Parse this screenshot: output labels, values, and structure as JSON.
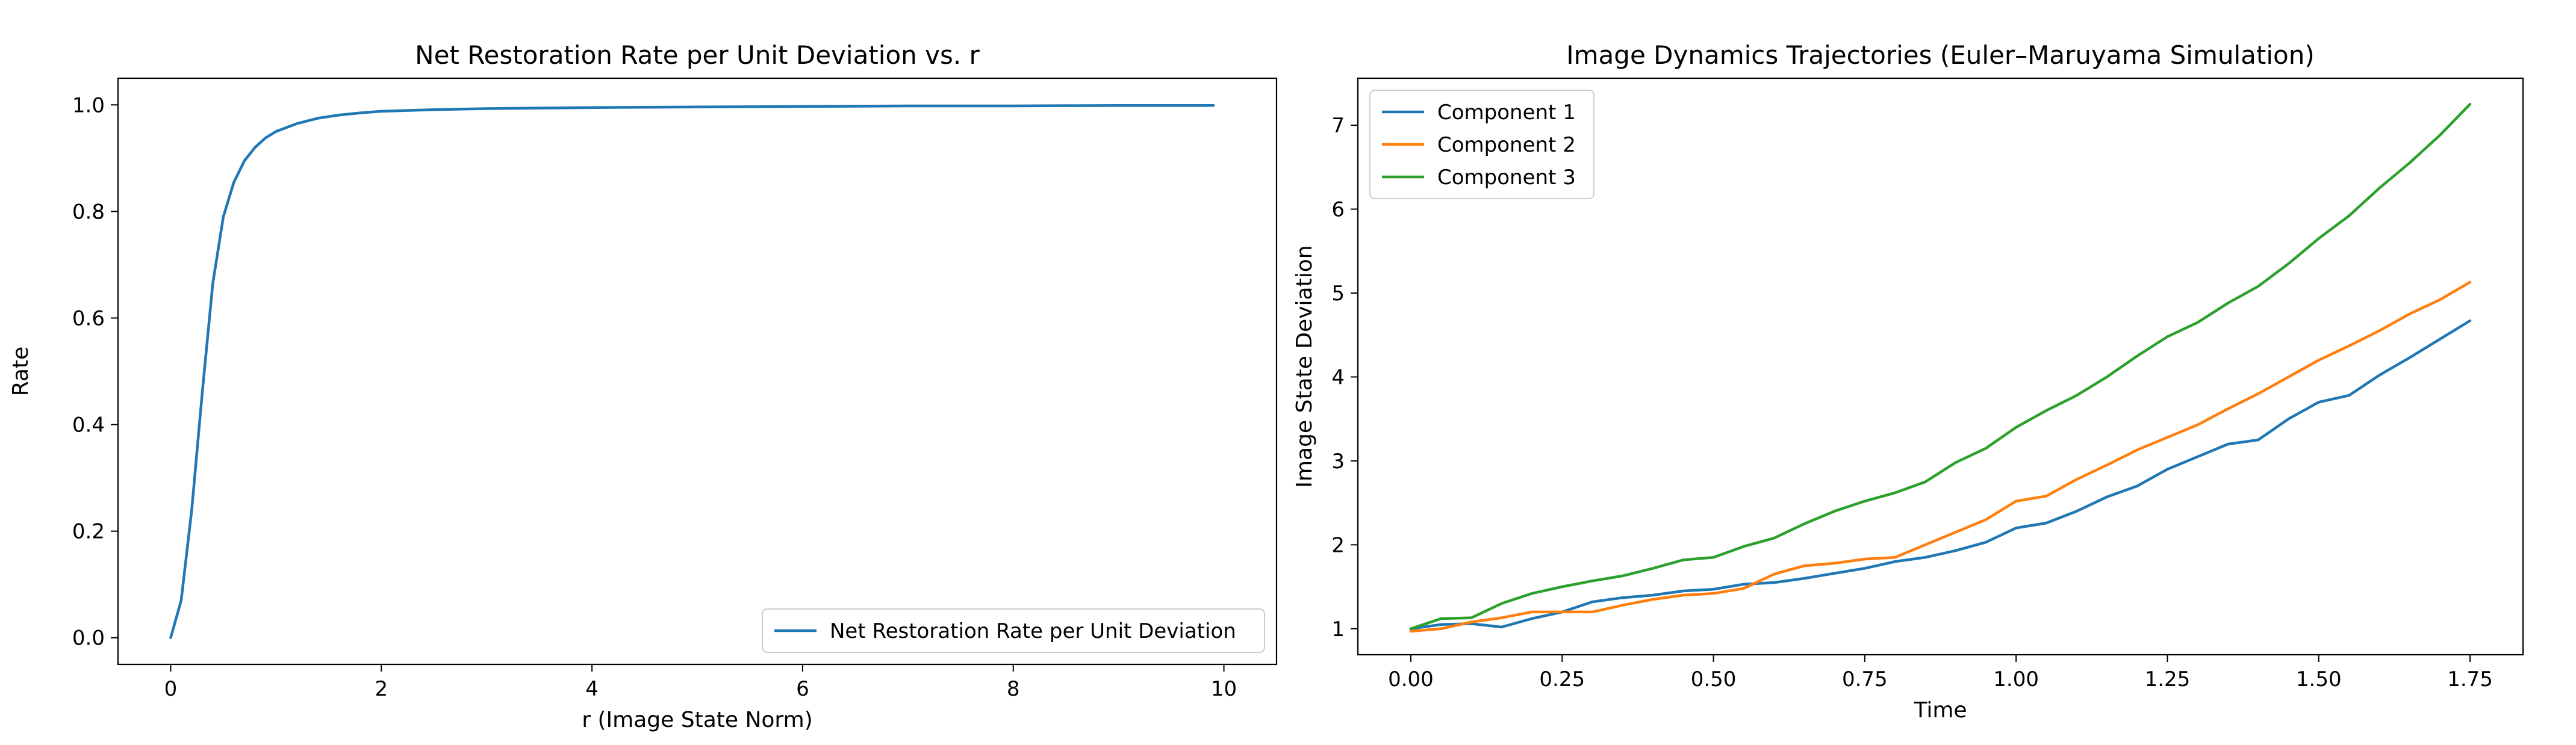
{
  "chart_data": [
    {
      "type": "line",
      "title": "Net Restoration Rate per Unit Deviation vs. r",
      "xlabel": "r (Image State Norm)",
      "ylabel": "Rate",
      "xlim": [
        -0.5,
        10.5
      ],
      "ylim": [
        -0.05,
        1.05
      ],
      "xticks": [
        0,
        2,
        4,
        6,
        8,
        10
      ],
      "yticks": [
        0.0,
        0.2,
        0.4,
        0.6,
        0.8,
        1.0
      ],
      "xtick_labels": [
        "0",
        "2",
        "4",
        "6",
        "8",
        "10"
      ],
      "ytick_labels": [
        "0.0",
        "0.2",
        "0.4",
        "0.6",
        "0.8",
        "1.0"
      ],
      "grid": false,
      "legend_position": "lower-right",
      "series": [
        {
          "name": "Net Restoration Rate per Unit Deviation",
          "color": "#1f77b4",
          "x": [
            0,
            0.1,
            0.2,
            0.3,
            0.4,
            0.5,
            0.6,
            0.7,
            0.8,
            0.9,
            1.0,
            1.2,
            1.4,
            1.6,
            1.8,
            2.0,
            2.5,
            3.0,
            3.5,
            4.0,
            5.0,
            6.0,
            7.0,
            8.0,
            9.0,
            9.9
          ],
          "y": [
            0.0,
            0.07,
            0.24,
            0.46,
            0.665,
            0.79,
            0.855,
            0.895,
            0.92,
            0.938,
            0.95,
            0.965,
            0.975,
            0.981,
            0.985,
            0.988,
            0.991,
            0.993,
            0.994,
            0.995,
            0.996,
            0.997,
            0.998,
            0.998,
            0.999,
            0.999
          ]
        }
      ]
    },
    {
      "type": "line",
      "title": "Image Dynamics Trajectories (Euler–Maruyama Simulation)",
      "xlabel": "Time",
      "ylabel": "Image State Deviation",
      "xlim": [
        -0.0875,
        1.8375
      ],
      "ylim": [
        0.69,
        7.56
      ],
      "xticks": [
        0.0,
        0.25,
        0.5,
        0.75,
        1.0,
        1.25,
        1.5,
        1.75
      ],
      "yticks": [
        1,
        2,
        3,
        4,
        5,
        6,
        7
      ],
      "xtick_labels": [
        "0.00",
        "0.25",
        "0.50",
        "0.75",
        "1.00",
        "1.25",
        "1.50",
        "1.75"
      ],
      "ytick_labels": [
        "1",
        "2",
        "3",
        "4",
        "5",
        "6",
        "7"
      ],
      "grid": false,
      "legend_position": "upper-left",
      "series": [
        {
          "name": "Component 1",
          "color": "#1f77b4",
          "x": [
            0.0,
            0.05,
            0.1,
            0.15,
            0.2,
            0.25,
            0.3,
            0.35,
            0.4,
            0.45,
            0.5,
            0.55,
            0.6,
            0.65,
            0.7,
            0.75,
            0.8,
            0.85,
            0.9,
            0.95,
            1.0,
            1.05,
            1.1,
            1.15,
            1.2,
            1.25,
            1.3,
            1.35,
            1.4,
            1.45,
            1.5,
            1.55,
            1.6,
            1.65,
            1.7,
            1.75
          ],
          "y": [
            1.0,
            1.05,
            1.06,
            1.02,
            1.12,
            1.2,
            1.32,
            1.37,
            1.4,
            1.45,
            1.47,
            1.53,
            1.55,
            1.6,
            1.66,
            1.72,
            1.8,
            1.85,
            1.93,
            2.03,
            2.2,
            2.26,
            2.4,
            2.57,
            2.7,
            2.9,
            3.05,
            3.2,
            3.25,
            3.5,
            3.7,
            3.78,
            4.02,
            4.23,
            4.45,
            4.67
          ]
        },
        {
          "name": "Component 2",
          "color": "#ff7f0e",
          "x": [
            0.0,
            0.05,
            0.1,
            0.15,
            0.2,
            0.25,
            0.3,
            0.35,
            0.4,
            0.45,
            0.5,
            0.55,
            0.6,
            0.65,
            0.7,
            0.75,
            0.8,
            0.85,
            0.9,
            0.95,
            1.0,
            1.05,
            1.1,
            1.15,
            1.2,
            1.25,
            1.3,
            1.35,
            1.4,
            1.45,
            1.5,
            1.55,
            1.6,
            1.65,
            1.7,
            1.75
          ],
          "y": [
            0.97,
            1.0,
            1.08,
            1.13,
            1.2,
            1.2,
            1.2,
            1.28,
            1.35,
            1.4,
            1.42,
            1.48,
            1.65,
            1.75,
            1.78,
            1.83,
            1.85,
            2.0,
            2.15,
            2.3,
            2.52,
            2.58,
            2.78,
            2.95,
            3.13,
            3.28,
            3.43,
            3.62,
            3.8,
            4.0,
            4.2,
            4.37,
            4.55,
            4.75,
            4.92,
            5.13
          ]
        },
        {
          "name": "Component 3",
          "color": "#2ca02c",
          "x": [
            0.0,
            0.05,
            0.1,
            0.15,
            0.2,
            0.25,
            0.3,
            0.35,
            0.4,
            0.45,
            0.5,
            0.55,
            0.6,
            0.65,
            0.7,
            0.75,
            0.8,
            0.85,
            0.9,
            0.95,
            1.0,
            1.05,
            1.1,
            1.15,
            1.2,
            1.25,
            1.3,
            1.35,
            1.4,
            1.45,
            1.5,
            1.55,
            1.6,
            1.65,
            1.7,
            1.75
          ],
          "y": [
            1.0,
            1.12,
            1.13,
            1.3,
            1.42,
            1.5,
            1.57,
            1.63,
            1.72,
            1.82,
            1.85,
            1.98,
            2.08,
            2.25,
            2.4,
            2.52,
            2.62,
            2.75,
            2.98,
            3.15,
            3.4,
            3.6,
            3.78,
            4.0,
            4.25,
            4.48,
            4.65,
            4.88,
            5.08,
            5.35,
            5.65,
            5.92,
            6.25,
            6.55,
            6.88,
            7.25
          ]
        }
      ]
    }
  ]
}
